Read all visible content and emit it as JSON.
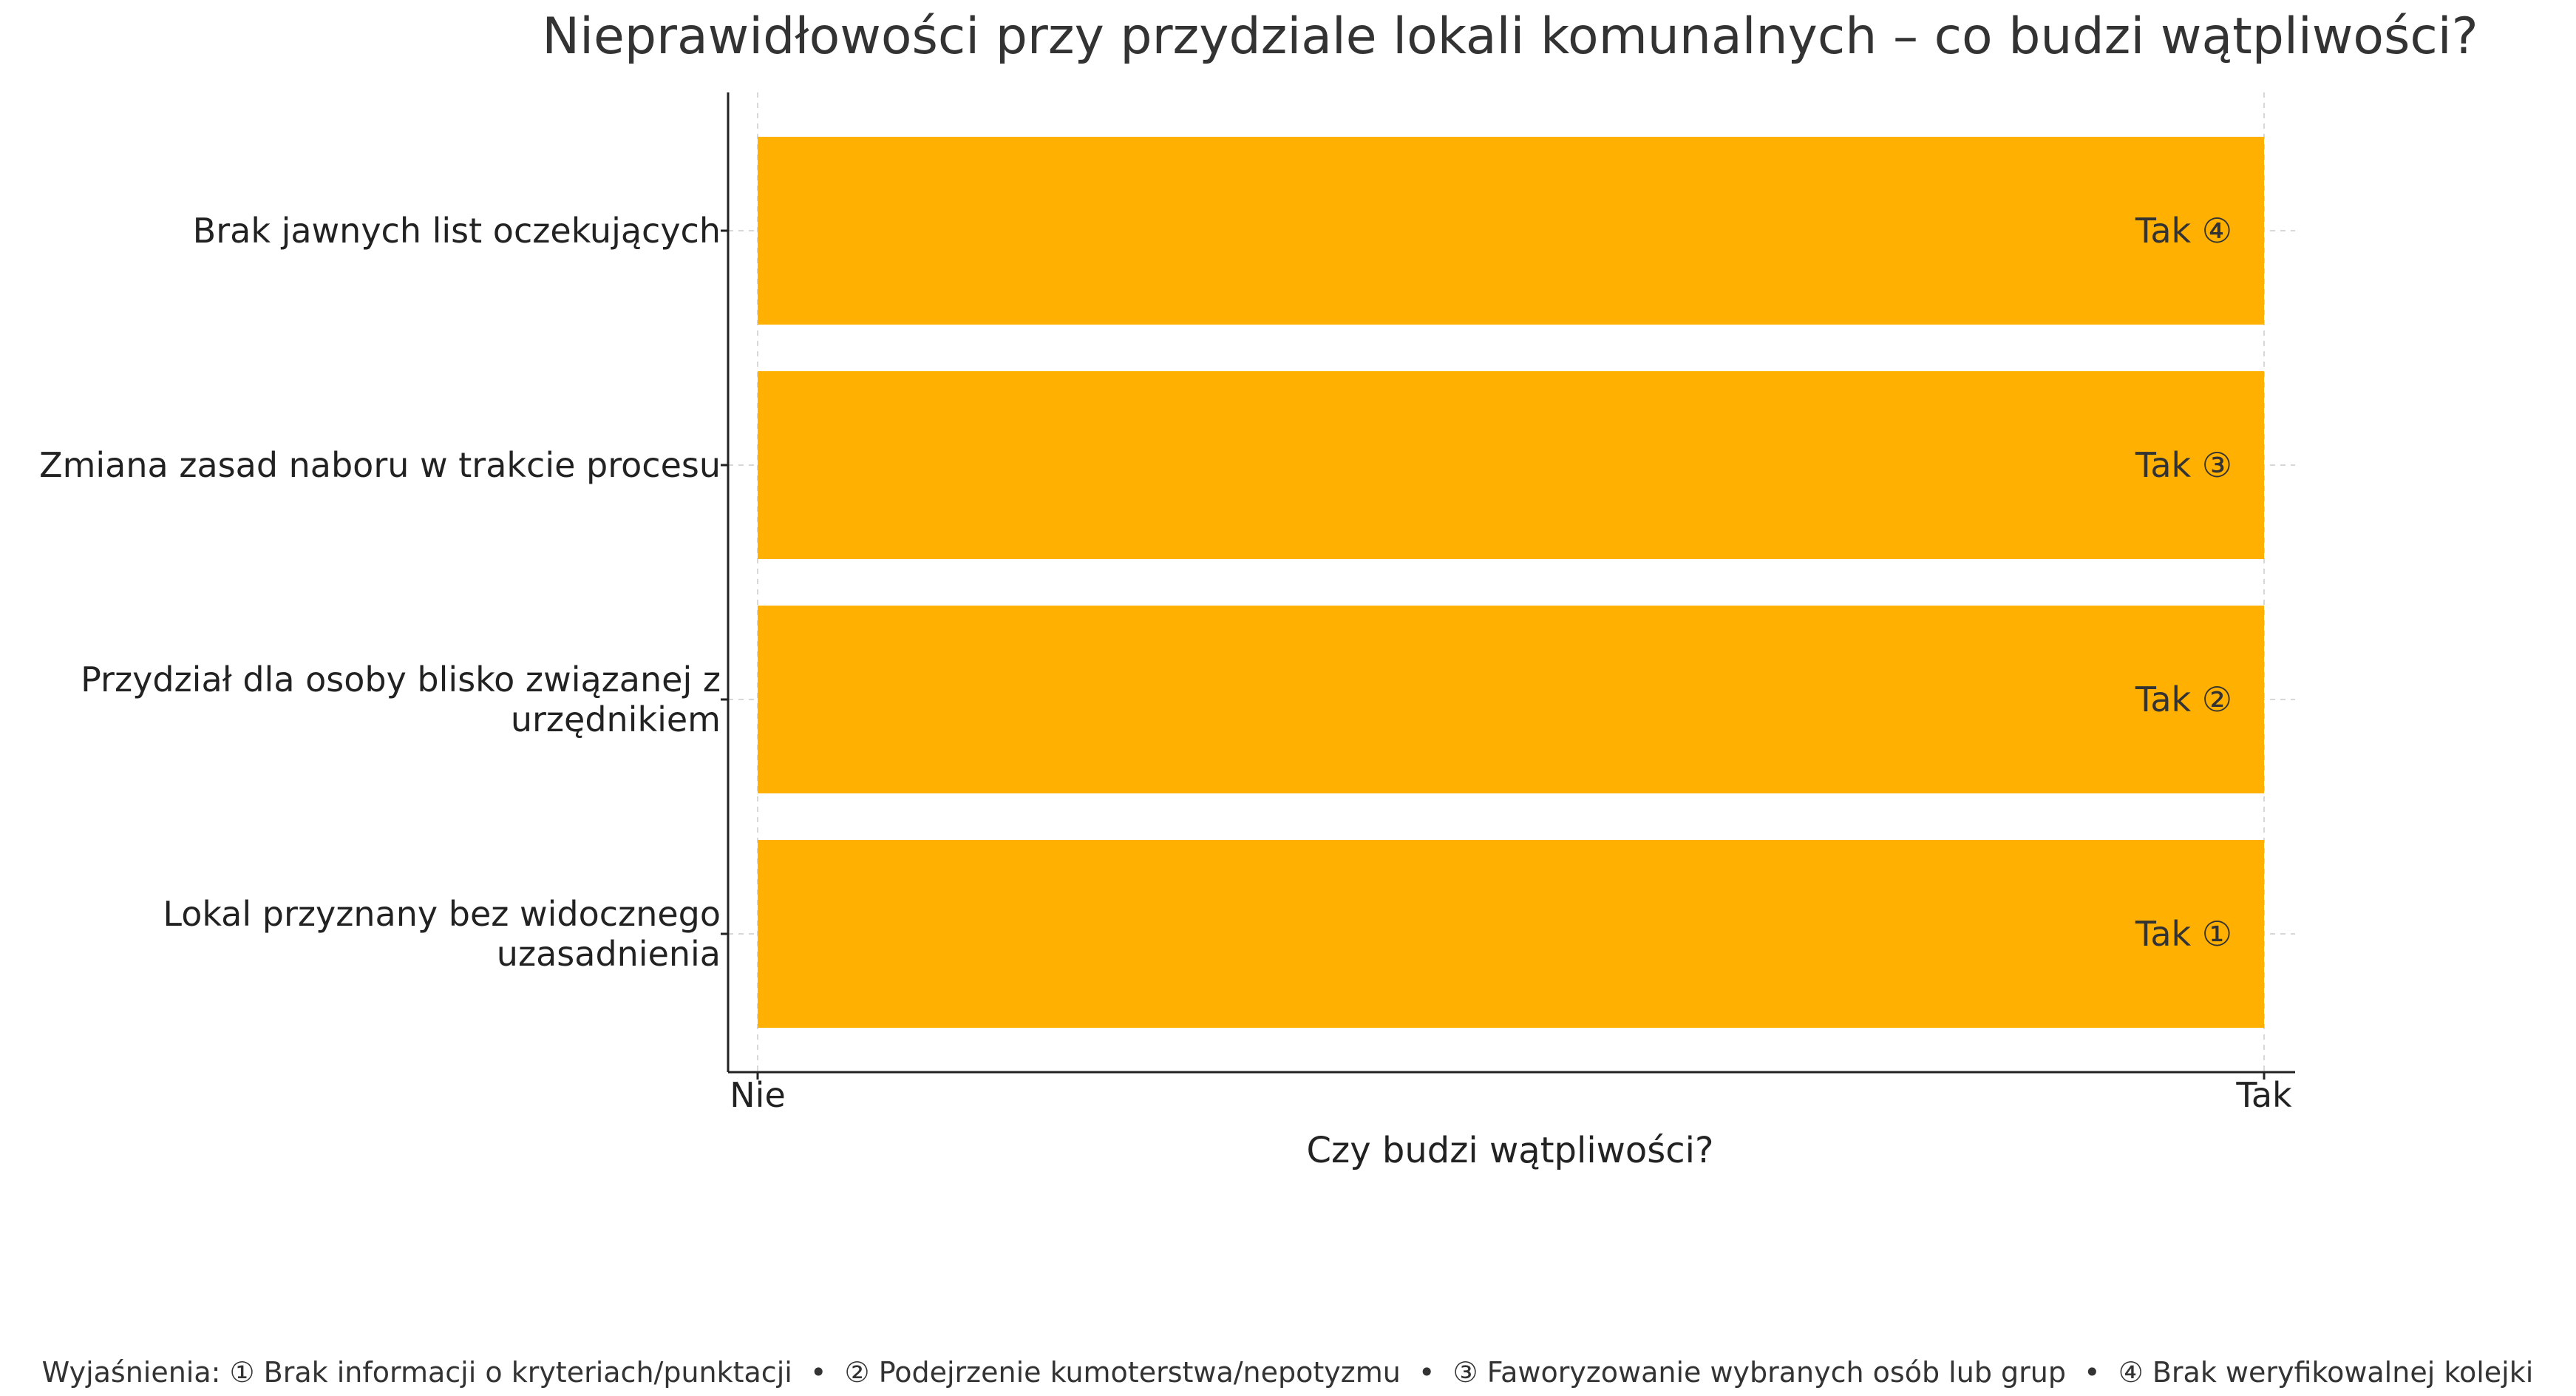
{
  "chart_data": {
    "type": "bar",
    "orientation": "horizontal",
    "title": "Nieprawidłowości przy przydziale lokali komunalnych – co budzi wątpliwości?",
    "xlabel": "Czy budzi wątpliwości?",
    "ylabel": "",
    "x_tick_labels": [
      "Nie",
      "Tak"
    ],
    "xlim": [
      0,
      1
    ],
    "grid": true,
    "bar_color": "#FFB000",
    "categories": [
      "Brak jawnych list oczekujących",
      "Zmiana zasad naboru w trakcie procesu",
      "Przydział dla osoby blisko związanej z urzędnikiem",
      "Lokal przyznany bez widocznego uzasadnienia"
    ],
    "category_label_lines": [
      [
        "Brak jawnych list oczekujących"
      ],
      [
        "Zmiana zasad naboru w trakcie procesu"
      ],
      [
        "Przydział dla osoby blisko związanej z",
        "urzędnikiem"
      ],
      [
        "Lokal przyznany bez widocznego",
        "uzasadnienia"
      ]
    ],
    "values": [
      1,
      1,
      1,
      1
    ],
    "data_labels": [
      "Tak ④",
      "Tak ③",
      "Tak ②",
      "Tak ①"
    ],
    "footnote": "Wyjaśnienia: ① Brak informacji o kryteriach/punktacji  •  ② Podejrzenie kumoterstwa/nepotyzmu  •  ③ Faworyzowanie wybranych osób lub grup  •  ④ Brak weryfikowalnej kolejki"
  }
}
